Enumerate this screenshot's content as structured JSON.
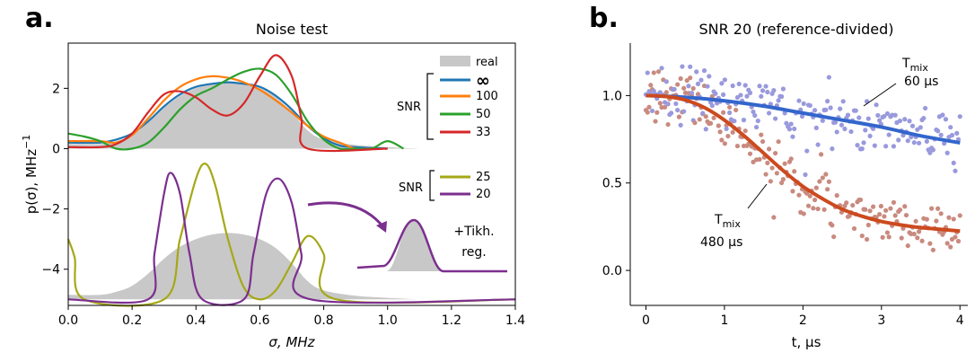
{
  "chart_data": [
    {
      "panel": "a.",
      "type": "line",
      "title": "Noise test",
      "xlabel": "σ, MHz",
      "ylabel": "p(σ), MHz",
      "ylabel_sup": "−1",
      "xlim": [
        0,
        1.4
      ],
      "ylim": [
        -5.2,
        3.5
      ],
      "xticks": [
        "0.0",
        "0.2",
        "0.4",
        "0.6",
        "0.8",
        "1.0",
        "1.2",
        "1.4"
      ],
      "yticks": [
        "−4",
        "−2",
        "0",
        "2"
      ],
      "legend_upper": {
        "group_label": "SNR",
        "entries": [
          "real",
          "∞",
          "100",
          "50",
          "33"
        ]
      },
      "legend_lower": {
        "group_label": "SNR",
        "entries": [
          "25",
          "20"
        ]
      },
      "inset_label": "+Tikh.\nreg.",
      "inset_label_lines": [
        "+Tikh.",
        "reg."
      ],
      "colors": {
        "real": "#c8c8c8",
        "inf": "#1f77b4",
        "100": "#ff7f0e",
        "50": "#2ca02c",
        "33": "#d62728",
        "25": "#a5a817",
        "20": "#7b2f8e"
      },
      "series": [
        {
          "name": "real",
          "kind": "area",
          "x": [
            0.0,
            0.1,
            0.15,
            0.2,
            0.25,
            0.3,
            0.35,
            0.4,
            0.45,
            0.5,
            0.55,
            0.6,
            0.65,
            0.7,
            0.75,
            0.8,
            0.9,
            1.0,
            1.1
          ],
          "values": [
            0.15,
            0.15,
            0.25,
            0.45,
            0.85,
            1.35,
            1.75,
            2.0,
            2.15,
            2.2,
            2.15,
            2.0,
            1.7,
            1.2,
            0.6,
            0.3,
            0.12,
            0.05,
            0.0
          ]
        },
        {
          "name": "∞",
          "x": [
            0.0,
            0.1,
            0.15,
            0.2,
            0.25,
            0.3,
            0.35,
            0.4,
            0.45,
            0.5,
            0.55,
            0.6,
            0.65,
            0.7,
            0.75,
            0.8,
            0.85,
            0.9,
            1.0
          ],
          "values": [
            0.2,
            0.2,
            0.3,
            0.5,
            0.9,
            1.4,
            1.8,
            2.05,
            2.15,
            2.2,
            2.15,
            2.05,
            1.75,
            1.3,
            0.75,
            0.35,
            0.1,
            0.05,
            0.0
          ]
        },
        {
          "name": "100",
          "x": [
            0.0,
            0.1,
            0.15,
            0.2,
            0.25,
            0.3,
            0.35,
            0.4,
            0.45,
            0.5,
            0.55,
            0.6,
            0.65,
            0.7,
            0.75,
            0.8,
            0.85,
            0.9,
            0.95
          ],
          "values": [
            0.25,
            0.25,
            0.2,
            0.45,
            1.0,
            1.6,
            2.05,
            2.3,
            2.4,
            2.35,
            2.2,
            1.95,
            1.6,
            1.2,
            0.75,
            0.4,
            0.2,
            0.0,
            0.0
          ]
        },
        {
          "name": "50",
          "x": [
            0.0,
            0.05,
            0.1,
            0.15,
            0.2,
            0.25,
            0.3,
            0.35,
            0.4,
            0.45,
            0.5,
            0.55,
            0.6,
            0.65,
            0.7,
            0.75,
            0.8,
            0.85,
            0.9,
            0.95,
            1.0,
            1.05
          ],
          "values": [
            0.5,
            0.4,
            0.25,
            0.0,
            0.0,
            0.2,
            0.7,
            1.3,
            1.75,
            2.0,
            2.3,
            2.55,
            2.65,
            2.45,
            1.8,
            0.9,
            0.3,
            0.0,
            0.0,
            0.0,
            0.25,
            0.0
          ]
        },
        {
          "name": "33",
          "x": [
            0.0,
            0.1,
            0.15,
            0.2,
            0.25,
            0.3,
            0.35,
            0.4,
            0.45,
            0.5,
            0.55,
            0.6,
            0.65,
            0.7,
            0.73,
            0.75,
            1.0
          ],
          "values": [
            0.05,
            0.05,
            0.15,
            0.5,
            1.2,
            1.8,
            1.9,
            1.7,
            1.3,
            1.1,
            1.5,
            2.4,
            3.1,
            2.4,
            1.0,
            0.0,
            0.0
          ]
        },
        {
          "name": "25",
          "x": [
            0.0,
            0.02,
            0.05,
            0.3,
            0.35,
            0.4,
            0.43,
            0.46,
            0.5,
            0.55,
            0.6,
            0.65,
            0.7,
            0.75,
            0.8,
            0.84,
            1.4
          ],
          "values": [
            -3.0,
            -3.6,
            -5.0,
            -5.0,
            -3.0,
            -1.0,
            -0.5,
            -1.2,
            -3.0,
            -4.6,
            -5.0,
            -4.7,
            -3.8,
            -2.9,
            -3.5,
            -5.0,
            -5.0
          ]
        },
        {
          "name": "20",
          "x": [
            0.0,
            0.25,
            0.27,
            0.3,
            0.32,
            0.35,
            0.38,
            0.42,
            0.55,
            0.58,
            0.62,
            0.66,
            0.7,
            0.73,
            0.76,
            1.4
          ],
          "values": [
            -5.0,
            -5.0,
            -3.5,
            -1.5,
            -0.8,
            -1.5,
            -3.5,
            -5.0,
            -5.0,
            -3.5,
            -1.5,
            -1.0,
            -1.8,
            -3.5,
            -5.0,
            -5.0
          ]
        }
      ]
    },
    {
      "panel": "b.",
      "type": "scatter",
      "title": "SNR 20 (reference-divided)",
      "xlabel": "t, μs",
      "ylabel": "",
      "xlim": [
        -0.2,
        4.1
      ],
      "ylim": [
        -0.2,
        1.3
      ],
      "xticks": [
        "0",
        "1",
        "2",
        "3",
        "4"
      ],
      "yticks": [
        "0.0",
        "0.5",
        "1.0"
      ],
      "annotations": [
        {
          "label_main": "T",
          "label_sub": "mix",
          "value": "60 μs"
        },
        {
          "label_main": "T",
          "label_sub": "mix",
          "value": "480 μs"
        }
      ],
      "colors": {
        "fit_60": "#3366cc",
        "fit_480": "#cc4a1f",
        "points_60": "#9999dd",
        "points_480": "#c98a7f"
      },
      "series": [
        {
          "name": "60 μs",
          "kind": "fit",
          "x": [
            0,
            0.5,
            1,
            1.5,
            2,
            2.5,
            3,
            3.5,
            4
          ],
          "values": [
            1.0,
            0.99,
            0.97,
            0.94,
            0.9,
            0.86,
            0.82,
            0.77,
            0.73
          ]
        },
        {
          "name": "480 μs",
          "kind": "fit",
          "x": [
            0,
            0.25,
            0.5,
            0.75,
            1,
            1.25,
            1.5,
            1.75,
            2,
            2.25,
            2.5,
            2.75,
            3,
            3.25,
            3.5,
            3.75,
            4
          ],
          "values": [
            1.0,
            0.995,
            0.975,
            0.93,
            0.86,
            0.77,
            0.67,
            0.57,
            0.48,
            0.41,
            0.35,
            0.31,
            0.28,
            0.26,
            0.245,
            0.235,
            0.225
          ]
        }
      ]
    }
  ]
}
